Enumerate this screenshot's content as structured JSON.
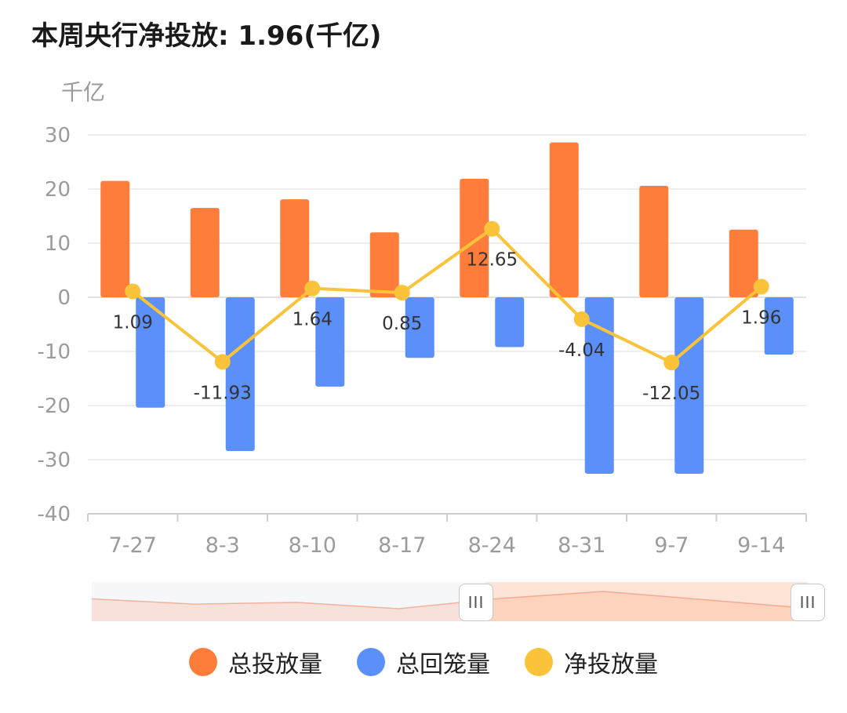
{
  "header": {
    "title": "本周央行净投放: 1.96(千亿)"
  },
  "colors": {
    "total_injection": "#FF7D3A",
    "total_withdrawal": "#5B8FF9",
    "net_injection": "#FBC33A"
  },
  "slider": {
    "handle_icon": "III",
    "selected_range": [
      0.55,
      1.0
    ]
  },
  "chart_data": {
    "type": "bar",
    "ylabel": "千亿",
    "ylim": [
      -40,
      30
    ],
    "yticks": [
      30,
      20,
      10,
      0,
      -10,
      -20,
      -30,
      -40
    ],
    "ytick_labels": [
      "30",
      "20",
      "10",
      "0",
      "-10",
      "-20",
      "-30",
      "-40"
    ],
    "categories": [
      "7-27",
      "8-3",
      "8-10",
      "8-17",
      "8-24",
      "8-31",
      "9-7",
      "9-14"
    ],
    "grid": true,
    "legend_position": "bottom",
    "series": [
      {
        "name": "总投放量",
        "type": "bar",
        "values": [
          21.5,
          16.5,
          18.1,
          12.0,
          21.9,
          28.6,
          20.6,
          12.5
        ]
      },
      {
        "name": "总回笼量",
        "type": "bar",
        "values": [
          -20.4,
          -28.4,
          -16.5,
          -11.2,
          -9.2,
          -32.6,
          -32.6,
          -10.6
        ]
      },
      {
        "name": "净投放量",
        "type": "line",
        "values": [
          1.09,
          -11.93,
          1.64,
          0.85,
          12.65,
          -4.04,
          -12.05,
          1.96
        ],
        "data_labels": [
          "1.09",
          "-11.93",
          "1.64",
          "0.85",
          "12.65",
          "-4.04",
          "-12.05",
          "1.96"
        ]
      }
    ]
  }
}
